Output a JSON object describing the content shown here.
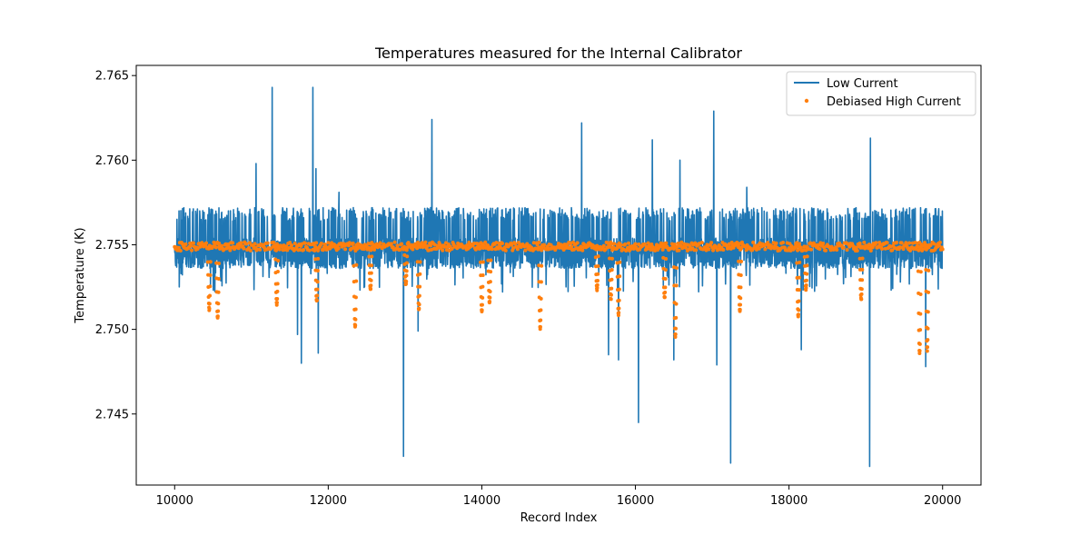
{
  "chart_data": {
    "type": "line",
    "title": "Temperatures measured for the Internal Calibrator",
    "xlabel": "Record Index",
    "ylabel": "Temperature (K)",
    "xlim": [
      9500,
      20500
    ],
    "ylim": [
      2.7408,
      2.7656
    ],
    "x_ticks": [
      10000,
      12000,
      14000,
      16000,
      18000,
      20000
    ],
    "y_ticks": [
      2.745,
      2.75,
      2.755,
      2.76,
      2.765
    ],
    "legend_position": "upper right",
    "series": [
      {
        "name": "Low Current",
        "style": "line",
        "color": "#1f77b4",
        "x_range": [
          10000,
          20000
        ],
        "typical_band": [
          2.7535,
          2.757
        ],
        "baseline": 2.7547,
        "notable_extremes": [
          {
            "x": 11270,
            "y": 2.7643
          },
          {
            "x": 11800,
            "y": 2.7643
          },
          {
            "x": 11060,
            "y": 2.7598
          },
          {
            "x": 11840,
            "y": 2.7595
          },
          {
            "x": 12140,
            "y": 2.7581
          },
          {
            "x": 13350,
            "y": 2.7624
          },
          {
            "x": 15300,
            "y": 2.7622
          },
          {
            "x": 16220,
            "y": 2.7612
          },
          {
            "x": 16580,
            "y": 2.76
          },
          {
            "x": 17020,
            "y": 2.7629
          },
          {
            "x": 17450,
            "y": 2.7584
          },
          {
            "x": 19060,
            "y": 2.7613
          },
          {
            "x": 11600,
            "y": 2.7497
          },
          {
            "x": 11650,
            "y": 2.748
          },
          {
            "x": 11870,
            "y": 2.7486
          },
          {
            "x": 12980,
            "y": 2.7425
          },
          {
            "x": 13170,
            "y": 2.7499
          },
          {
            "x": 15650,
            "y": 2.7485
          },
          {
            "x": 15780,
            "y": 2.7482
          },
          {
            "x": 16040,
            "y": 2.7445
          },
          {
            "x": 16500,
            "y": 2.7482
          },
          {
            "x": 17060,
            "y": 2.7479
          },
          {
            "x": 17240,
            "y": 2.7421
          },
          {
            "x": 18160,
            "y": 2.7488
          },
          {
            "x": 19050,
            "y": 2.7419
          },
          {
            "x": 19780,
            "y": 2.7478
          }
        ]
      },
      {
        "name": "Debiased High Current",
        "style": "scatter",
        "color": "#ff7f0e",
        "x_range": [
          10000,
          20000
        ],
        "baseline": 2.7549,
        "dips": [
          {
            "x": 10450,
            "min": 2.7512
          },
          {
            "x": 10560,
            "min": 2.7507
          },
          {
            "x": 11330,
            "min": 2.7515
          },
          {
            "x": 11850,
            "min": 2.7517
          },
          {
            "x": 12350,
            "min": 2.7502
          },
          {
            "x": 12550,
            "min": 2.7524
          },
          {
            "x": 13010,
            "min": 2.7527
          },
          {
            "x": 13180,
            "min": 2.7512
          },
          {
            "x": 14000,
            "min": 2.7511
          },
          {
            "x": 14100,
            "min": 2.7516
          },
          {
            "x": 14760,
            "min": 2.7501
          },
          {
            "x": 15500,
            "min": 2.7524
          },
          {
            "x": 15680,
            "min": 2.7518
          },
          {
            "x": 15780,
            "min": 2.7509
          },
          {
            "x": 16380,
            "min": 2.7519
          },
          {
            "x": 16520,
            "min": 2.7496
          },
          {
            "x": 17360,
            "min": 2.7511
          },
          {
            "x": 18120,
            "min": 2.7508
          },
          {
            "x": 18220,
            "min": 2.7524
          },
          {
            "x": 18940,
            "min": 2.7518
          },
          {
            "x": 19700,
            "min": 2.7486
          },
          {
            "x": 19800,
            "min": 2.7488
          }
        ]
      }
    ]
  }
}
